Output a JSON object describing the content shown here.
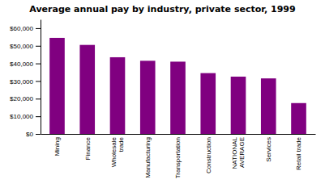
{
  "chart_data": {
    "type": "bar",
    "title": "Average annual pay by industry, private sector, 1999",
    "categories": [
      "Mining",
      "Finance",
      "Wholesale\ntrade",
      "Manufacturing",
      "Transportation",
      "Construction",
      "NATIONAL\nAVERAGE",
      "Services",
      "Retail trade"
    ],
    "values": [
      54500,
      50500,
      43500,
      41500,
      41000,
      34500,
      32500,
      31500,
      17500
    ],
    "color": "#800080",
    "ylim": [
      0,
      65000
    ],
    "yticks": [
      {
        "value": 0,
        "label": "$0"
      },
      {
        "value": 10000,
        "label": "$10,000"
      },
      {
        "value": 20000,
        "label": "$20,000"
      },
      {
        "value": 30000,
        "label": "$30,000"
      },
      {
        "value": 40000,
        "label": "$40,000"
      },
      {
        "value": 50000,
        "label": "$50,000"
      },
      {
        "value": 60000,
        "label": "$60,000"
      }
    ],
    "grid": false
  }
}
